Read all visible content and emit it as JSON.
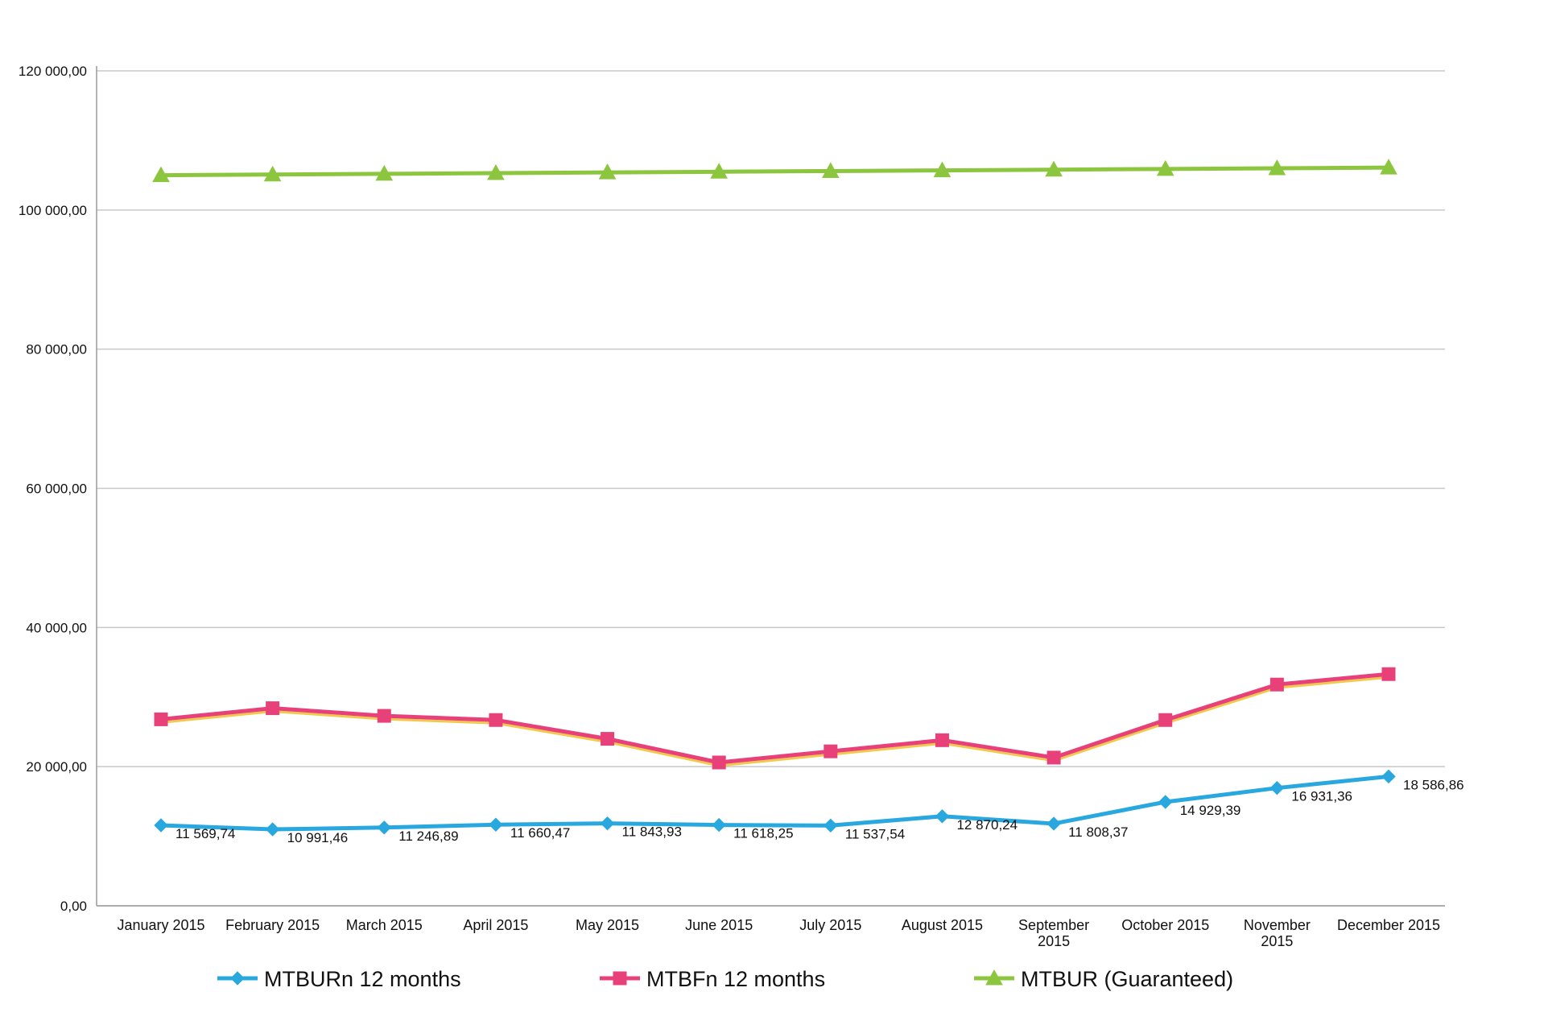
{
  "chart_data": {
    "type": "line",
    "title": "",
    "xlabel": "",
    "ylabel": "",
    "categories": [
      "January 2015",
      "February 2015",
      "March 2015",
      "April 2015",
      "May 2015",
      "June 2015",
      "July 2015",
      "August 2015",
      "September 2015",
      "October 2015",
      "November 2015",
      "December 2015"
    ],
    "ylim": [
      0,
      120000
    ],
    "yticks": [
      0,
      20000,
      40000,
      60000,
      80000,
      100000,
      120000
    ],
    "ytick_labels": [
      "0,00",
      "20 000,00",
      "40 000,00",
      "60 000,00",
      "80 000,00",
      "100 000,00",
      "120 000,00"
    ],
    "grid": true,
    "legend_position": "bottom",
    "series": [
      {
        "name": "MTBURn 12 months",
        "color": "#29a8e0",
        "marker": "diamond",
        "values": [
          11569.74,
          10991.46,
          11246.89,
          11660.47,
          11843.93,
          11618.25,
          11537.54,
          12870.24,
          11808.37,
          14929.39,
          16931.36,
          18586.86
        ],
        "labels": [
          "11 569,74",
          "10 991,46",
          "11 246,89",
          "11 660,47",
          "11 843,93",
          "11 618,25",
          "11 537,54",
          "12 870,24",
          "11 808,37",
          "14 929,39",
          "16 931,36",
          "18 586,86"
        ]
      },
      {
        "name": "MTBFn 12 months",
        "color": "#e8417a",
        "marker": "square",
        "values": [
          26800,
          28400,
          27300,
          26700,
          24000,
          20600,
          22200,
          23800,
          21300,
          26700,
          31800,
          33300
        ]
      },
      {
        "name": "MTBUR (Guaranteed)",
        "color": "#8cc63f",
        "marker": "triangle",
        "values": [
          105000,
          105100,
          105200,
          105300,
          105400,
          105500,
          105600,
          105700,
          105800,
          105900,
          106000,
          106100
        ]
      }
    ]
  }
}
